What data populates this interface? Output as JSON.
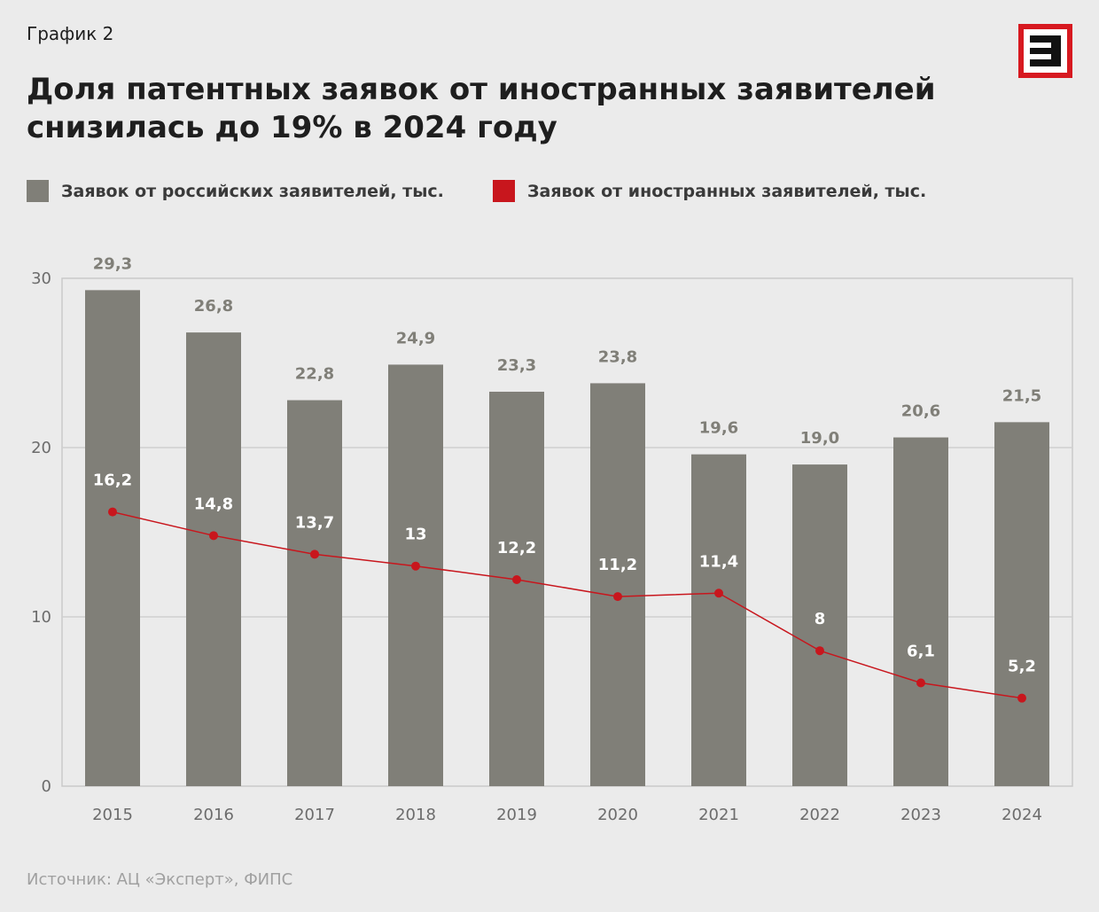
{
  "header": {
    "kicker": "График 2",
    "title": "Доля патентных заявок от иностранных заявителей снизилась до 19% в 2024 году"
  },
  "logo": {
    "icon": "expert-logo-icon",
    "letter": "Э",
    "color": "#d71920"
  },
  "legend": {
    "series1": "Заявок от российских заявителей, тыс.",
    "series2": "Заявок от иностранных заявителей, тыс."
  },
  "source": "Источник: АЦ «Эксперт», ФИПС",
  "colors": {
    "bar": "#807f78",
    "line": "#c8161d",
    "grid": "#cfcfcf",
    "axis": "#c9c9c9",
    "barLabel": "#807f78",
    "lineLabel": "#ffffff"
  },
  "chart_data": {
    "type": "bar",
    "title": "Доля патентных заявок от иностранных заявителей снизилась до 19% в 2024 году",
    "xlabel": "",
    "ylabel": "",
    "ylim": [
      0,
      30
    ],
    "yticks": [
      0,
      10,
      20,
      30
    ],
    "grid": true,
    "categories": [
      "2015",
      "2016",
      "2017",
      "2018",
      "2019",
      "2020",
      "2021",
      "2022",
      "2023",
      "2024"
    ],
    "series": [
      {
        "name": "Заявок от российских заявителей, тыс.",
        "type": "bar",
        "values": [
          29.3,
          26.8,
          22.8,
          24.9,
          23.3,
          23.8,
          19.6,
          19.0,
          20.6,
          21.5
        ],
        "labels": [
          "29,3",
          "26,8",
          "22,8",
          "24,9",
          "23,3",
          "23,8",
          "19,6",
          "19,0",
          "20,6",
          "21,5"
        ]
      },
      {
        "name": "Заявок от иностранных заявителей, тыс.",
        "type": "line",
        "values": [
          16.2,
          14.8,
          13.7,
          13,
          12.2,
          11.2,
          11.4,
          8,
          6.1,
          5.2
        ],
        "labels": [
          "16,2",
          "14,8",
          "13,7",
          "13",
          "12,2",
          "11,2",
          "11,4",
          "8",
          "6,1",
          "5,2"
        ]
      }
    ]
  }
}
